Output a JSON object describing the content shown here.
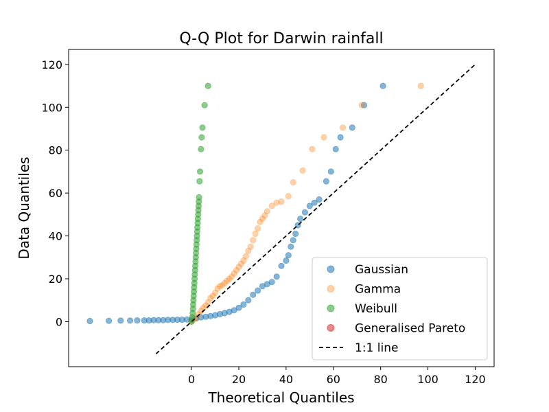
{
  "chart_data": {
    "type": "scatter",
    "title": "Q-Q Plot for Darwin rainfall",
    "xlabel": "Theoretical Quantiles",
    "ylabel": "Data Quantiles",
    "xlim": [
      -52,
      128
    ],
    "ylim": [
      -21,
      127
    ],
    "xticks": [
      0,
      20,
      40,
      60,
      80,
      100,
      120
    ],
    "yticks": [
      0,
      20,
      40,
      60,
      80,
      100,
      120
    ],
    "grid": false,
    "legend_position": "lower-right",
    "series": [
      {
        "name": "Gaussian",
        "color": "#1f77b4",
        "points": [
          [
            -43,
            0.3
          ],
          [
            -35,
            0.4
          ],
          [
            -30,
            0.5
          ],
          [
            -26,
            0.5
          ],
          [
            -23,
            0.6
          ],
          [
            -20,
            0.6
          ],
          [
            -18,
            0.6
          ],
          [
            -16,
            0.7
          ],
          [
            -14,
            0.7
          ],
          [
            -12,
            0.7
          ],
          [
            -10,
            0.8
          ],
          [
            -8,
            0.8
          ],
          [
            -6,
            0.9
          ],
          [
            -4,
            0.9
          ],
          [
            -2,
            1.0
          ],
          [
            0,
            1.0
          ],
          [
            2,
            1.5
          ],
          [
            4,
            2.0
          ],
          [
            6,
            2.3
          ],
          [
            8,
            2.6
          ],
          [
            10,
            3.0
          ],
          [
            12,
            3.5
          ],
          [
            14,
            4.0
          ],
          [
            16,
            4.6
          ],
          [
            18,
            5.3
          ],
          [
            20,
            6.5
          ],
          [
            22,
            8.0
          ],
          [
            24,
            10.0
          ],
          [
            26,
            12.5
          ],
          [
            28,
            14.5
          ],
          [
            30,
            16.5
          ],
          [
            32,
            17.5
          ],
          [
            34,
            18.5
          ],
          [
            36,
            21.0
          ],
          [
            38,
            26.0
          ],
          [
            40,
            28.5
          ],
          [
            41,
            31.0
          ],
          [
            42,
            35.0
          ],
          [
            43,
            38.0
          ],
          [
            44,
            41.0
          ],
          [
            45,
            45.0
          ],
          [
            46,
            48.0
          ],
          [
            48,
            51.0
          ],
          [
            50,
            54.0
          ],
          [
            52,
            55.5
          ],
          [
            54,
            57.0
          ],
          [
            57,
            65.5
          ],
          [
            59,
            70.0
          ],
          [
            61,
            80.5
          ],
          [
            63,
            86.0
          ],
          [
            68,
            90.5
          ],
          [
            73,
            101.0
          ],
          [
            81,
            110.0
          ]
        ]
      },
      {
        "name": "Gamma",
        "color": "#ff7f0e",
        "points": [
          [
            0,
            0.0
          ],
          [
            1,
            1.0
          ],
          [
            2,
            2.0
          ],
          [
            3,
            3.5
          ],
          [
            4,
            5.0
          ],
          [
            5,
            6.5
          ],
          [
            6,
            7.5
          ],
          [
            7,
            9.0
          ],
          [
            8,
            11.0
          ],
          [
            9,
            12.0
          ],
          [
            10,
            13.5
          ],
          [
            11,
            15.5
          ],
          [
            12,
            16.5
          ],
          [
            13,
            17.0
          ],
          [
            14,
            18.0
          ],
          [
            15,
            19.0
          ],
          [
            16,
            20.0
          ],
          [
            17,
            21.0
          ],
          [
            18,
            22.5
          ],
          [
            19,
            24.0
          ],
          [
            20,
            25.5
          ],
          [
            21,
            27.0
          ],
          [
            22,
            28.5
          ],
          [
            23,
            30.5
          ],
          [
            24,
            33.0
          ],
          [
            25,
            35.0
          ],
          [
            26,
            38.0
          ],
          [
            27,
            41.0
          ],
          [
            28,
            43.5
          ],
          [
            29,
            46.5
          ],
          [
            30,
            48.0
          ],
          [
            31,
            49.5
          ],
          [
            32,
            51.5
          ],
          [
            34,
            54.0
          ],
          [
            36,
            55.5
          ],
          [
            38,
            56.0
          ],
          [
            41,
            58.5
          ],
          [
            43,
            65.0
          ],
          [
            47,
            70.5
          ],
          [
            51,
            80.5
          ],
          [
            56,
            86.0
          ],
          [
            64,
            90.5
          ],
          [
            72,
            101.0
          ],
          [
            97,
            110.0
          ]
        ]
      },
      {
        "name": "Weibull",
        "color": "#2ca02c",
        "points": [
          [
            0,
            0.0
          ],
          [
            0.3,
            2
          ],
          [
            0.5,
            4
          ],
          [
            0.6,
            6
          ],
          [
            0.7,
            8
          ],
          [
            0.8,
            10
          ],
          [
            0.9,
            12
          ],
          [
            1.0,
            14
          ],
          [
            1.1,
            16
          ],
          [
            1.2,
            18
          ],
          [
            1.3,
            20
          ],
          [
            1.4,
            22
          ],
          [
            1.5,
            24
          ],
          [
            1.6,
            26
          ],
          [
            1.7,
            28
          ],
          [
            1.8,
            30
          ],
          [
            1.9,
            32
          ],
          [
            2.0,
            34
          ],
          [
            2.1,
            36
          ],
          [
            2.2,
            38
          ],
          [
            2.3,
            40
          ],
          [
            2.4,
            42
          ],
          [
            2.5,
            44
          ],
          [
            2.6,
            46
          ],
          [
            2.7,
            48
          ],
          [
            2.8,
            50
          ],
          [
            2.9,
            52
          ],
          [
            3.0,
            54
          ],
          [
            3.1,
            56
          ],
          [
            3.2,
            58
          ],
          [
            3.4,
            65.5
          ],
          [
            3.6,
            70
          ],
          [
            4.0,
            80.5
          ],
          [
            4.3,
            86
          ],
          [
            4.6,
            90.5
          ],
          [
            5.5,
            101
          ],
          [
            7.0,
            110
          ]
        ]
      },
      {
        "name": "Generalised Pareto",
        "color": "#d62728",
        "points": []
      }
    ],
    "reference_line": {
      "name": "1:1 line",
      "color": "#000000",
      "style": "dashed",
      "from": [
        -15,
        -15
      ],
      "to": [
        120,
        120
      ]
    }
  }
}
